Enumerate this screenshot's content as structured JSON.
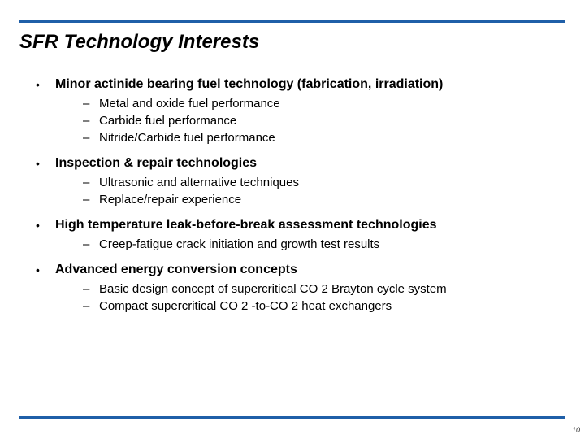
{
  "colors": {
    "rule": "#1f5fa8",
    "background": "#ffffff",
    "text": "#000000"
  },
  "title": "SFR Technology Interests",
  "bullets": [
    {
      "label": "Minor actinide bearing fuel technology (fabrication, irradiation)",
      "subs": [
        "Metal and oxide fuel performance",
        "Carbide fuel performance",
        "Nitride/Carbide fuel performance"
      ]
    },
    {
      "label": "Inspection & repair technologies",
      "subs": [
        "Ultrasonic and alternative techniques",
        "Replace/repair experience"
      ]
    },
    {
      "label": "High temperature leak-before-break assessment technologies",
      "subs": [
        "Creep-fatigue crack initiation and growth test results"
      ]
    },
    {
      "label": "Advanced energy conversion concepts",
      "subs": [
        "Basic design concept of supercritical CO 2 Brayton cycle system",
        "Compact supercritical CO 2 -to-CO 2 heat exchangers"
      ]
    }
  ],
  "page_number": "10"
}
